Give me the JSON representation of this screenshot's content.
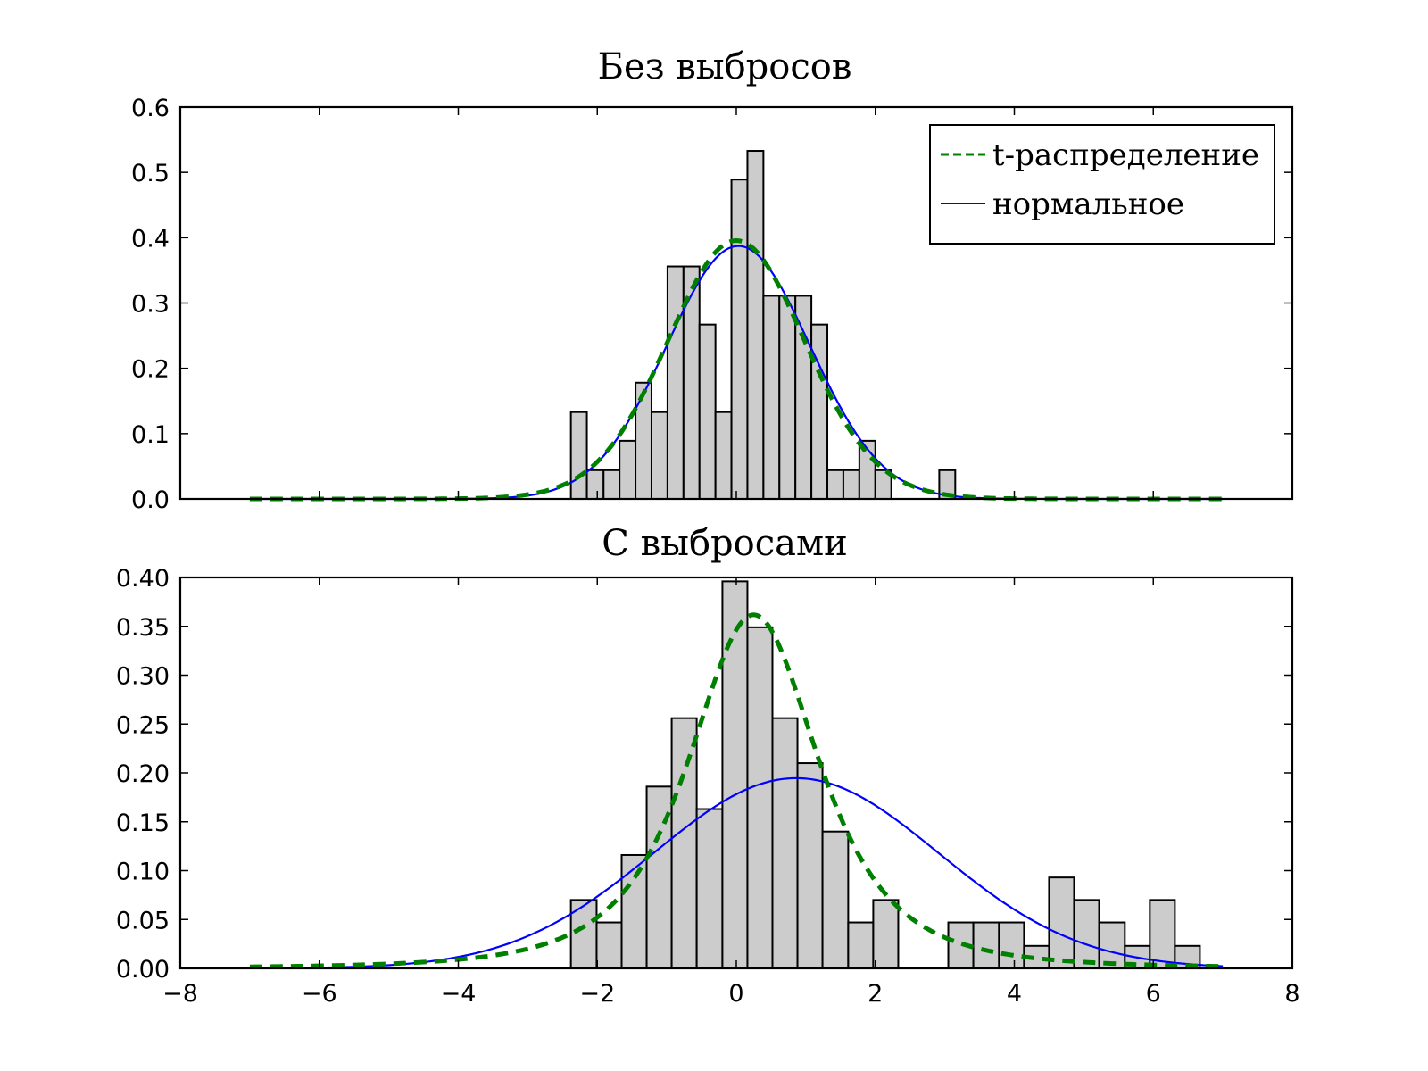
{
  "chart_data": [
    {
      "type": "histogram",
      "title": "Без выбросов",
      "xlim": [
        -8,
        8
      ],
      "ylim": [
        0,
        0.6
      ],
      "xticks": [
        -8,
        -6,
        -4,
        -2,
        0,
        2,
        4,
        6,
        8
      ],
      "yticks": [
        "0.0",
        "0.1",
        "0.2",
        "0.3",
        "0.4",
        "0.5",
        "0.6"
      ],
      "show_x_ticklabels": false,
      "bar_color": "#cccccc",
      "bins": [
        {
          "x0": -2.38,
          "x1": -2.15,
          "y": 0.133
        },
        {
          "x0": -2.15,
          "x1": -1.91,
          "y": 0.044
        },
        {
          "x0": -1.91,
          "x1": -1.68,
          "y": 0.044
        },
        {
          "x0": -1.68,
          "x1": -1.45,
          "y": 0.089
        },
        {
          "x0": -1.45,
          "x1": -1.22,
          "y": 0.178
        },
        {
          "x0": -1.22,
          "x1": -0.99,
          "y": 0.133
        },
        {
          "x0": -0.99,
          "x1": -0.76,
          "y": 0.356
        },
        {
          "x0": -0.76,
          "x1": -0.53,
          "y": 0.356
        },
        {
          "x0": -0.53,
          "x1": -0.3,
          "y": 0.267
        },
        {
          "x0": -0.3,
          "x1": -0.07,
          "y": 0.133
        },
        {
          "x0": -0.07,
          "x1": 0.16,
          "y": 0.489
        },
        {
          "x0": 0.16,
          "x1": 0.39,
          "y": 0.533
        },
        {
          "x0": 0.39,
          "x1": 0.62,
          "y": 0.311
        },
        {
          "x0": 0.62,
          "x1": 0.85,
          "y": 0.311
        },
        {
          "x0": 0.85,
          "x1": 1.08,
          "y": 0.311
        },
        {
          "x0": 1.08,
          "x1": 1.31,
          "y": 0.267
        },
        {
          "x0": 1.31,
          "x1": 1.54,
          "y": 0.044
        },
        {
          "x0": 1.54,
          "x1": 1.77,
          "y": 0.044
        },
        {
          "x0": 1.77,
          "x1": 2.0,
          "y": 0.089
        },
        {
          "x0": 2.0,
          "x1": 2.23,
          "y": 0.044
        },
        {
          "x0": 2.23,
          "x1": 2.46,
          "y": 0.0
        },
        {
          "x0": 2.46,
          "x1": 2.69,
          "y": 0.0
        },
        {
          "x0": 2.69,
          "x1": 2.92,
          "y": 0.0
        },
        {
          "x0": 2.92,
          "x1": 3.15,
          "y": 0.044
        }
      ],
      "series": [
        {
          "name": "t-распределение",
          "dist": "t",
          "loc": 0.0,
          "scale": 1.0,
          "df": 30,
          "color": "#008000",
          "style": "dashed",
          "x_range": [
            -7,
            7
          ]
        },
        {
          "name": "нормальное",
          "dist": "normal",
          "mu": 0.03,
          "sigma": 1.03,
          "color": "#0000ff",
          "style": "solid",
          "x_range": [
            -7,
            7
          ]
        }
      ],
      "legend": {
        "position": "upper-right"
      }
    },
    {
      "type": "histogram",
      "title": "С выбросами",
      "xlim": [
        -8,
        8
      ],
      "ylim": [
        0,
        0.4
      ],
      "xticks": [
        -8,
        -6,
        -4,
        -2,
        0,
        2,
        4,
        6,
        8
      ],
      "xtick_labels": [
        "−8",
        "−6",
        "−4",
        "−2",
        "0",
        "2",
        "4",
        "6",
        "8"
      ],
      "yticks": [
        "0.00",
        "0.05",
        "0.10",
        "0.15",
        "0.20",
        "0.25",
        "0.30",
        "0.35",
        "0.40"
      ],
      "bar_color": "#cccccc",
      "bins": [
        {
          "x0": -2.38,
          "x1": -2.01,
          "y": 0.07
        },
        {
          "x0": -2.01,
          "x1": -1.65,
          "y": 0.047
        },
        {
          "x0": -1.65,
          "x1": -1.29,
          "y": 0.116
        },
        {
          "x0": -1.29,
          "x1": -0.93,
          "y": 0.186
        },
        {
          "x0": -0.93,
          "x1": -0.57,
          "y": 0.256
        },
        {
          "x0": -0.57,
          "x1": -0.2,
          "y": 0.163
        },
        {
          "x0": -0.2,
          "x1": 0.16,
          "y": 0.396
        },
        {
          "x0": 0.16,
          "x1": 0.52,
          "y": 0.349
        },
        {
          "x0": 0.52,
          "x1": 0.88,
          "y": 0.256
        },
        {
          "x0": 0.88,
          "x1": 1.24,
          "y": 0.21
        },
        {
          "x0": 1.24,
          "x1": 1.61,
          "y": 0.14
        },
        {
          "x0": 1.61,
          "x1": 1.97,
          "y": 0.047
        },
        {
          "x0": 1.97,
          "x1": 2.33,
          "y": 0.07
        },
        {
          "x0": 2.33,
          "x1": 2.69,
          "y": 0.0
        },
        {
          "x0": 2.69,
          "x1": 3.05,
          "y": 0.0
        },
        {
          "x0": 3.05,
          "x1": 3.41,
          "y": 0.047
        },
        {
          "x0": 3.41,
          "x1": 3.78,
          "y": 0.047
        },
        {
          "x0": 3.78,
          "x1": 4.14,
          "y": 0.047
        },
        {
          "x0": 4.14,
          "x1": 4.5,
          "y": 0.023
        },
        {
          "x0": 4.5,
          "x1": 4.86,
          "y": 0.093
        },
        {
          "x0": 4.86,
          "x1": 5.22,
          "y": 0.07
        },
        {
          "x0": 5.22,
          "x1": 5.59,
          "y": 0.047
        },
        {
          "x0": 5.59,
          "x1": 5.95,
          "y": 0.023
        },
        {
          "x0": 5.95,
          "x1": 6.31,
          "y": 0.07
        },
        {
          "x0": 6.31,
          "x1": 6.67,
          "y": 0.023
        }
      ],
      "series": [
        {
          "name": "t-распределение",
          "dist": "t",
          "loc": 0.25,
          "scale": 1.0,
          "df": 2.5,
          "color": "#008000",
          "style": "dashed",
          "x_range": [
            -7,
            7
          ]
        },
        {
          "name": "нормальное",
          "dist": "normal",
          "mu": 0.86,
          "sigma": 2.05,
          "color": "#0000ff",
          "style": "solid",
          "x_range": [
            -7,
            7
          ]
        }
      ]
    }
  ]
}
